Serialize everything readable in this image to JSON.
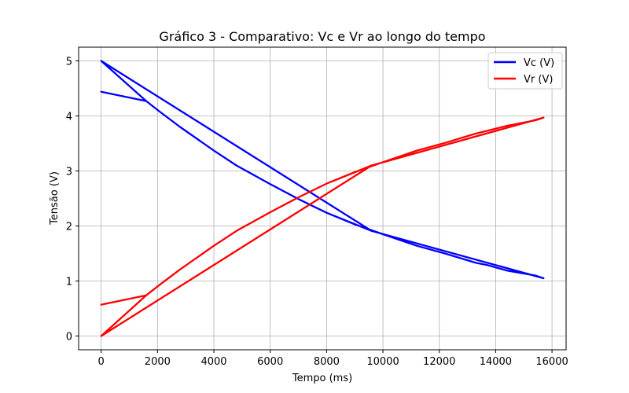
{
  "chart_data": {
    "type": "line",
    "title": "Gráfico 3 - Comparativo: Vc e Vr ao longo do tempo",
    "xlabel": "Tempo (ms)",
    "ylabel": "Tensão (V)",
    "xlim": [
      -800,
      16500
    ],
    "ylim": [
      -0.25,
      5.25
    ],
    "xticks": [
      0,
      2000,
      4000,
      6000,
      8000,
      10000,
      12000,
      14000,
      16000
    ],
    "yticks": [
      0,
      1,
      2,
      3,
      4,
      5
    ],
    "grid": true,
    "legend_position": "top-right",
    "series": [
      {
        "name": "Vc (V)",
        "color": "#0000ff",
        "points": [
          [
            0,
            4.44
          ],
          [
            1600,
            4.27
          ],
          [
            2100,
            4.07
          ],
          [
            2800,
            3.8
          ],
          [
            4000,
            3.37
          ],
          [
            4800,
            3.1
          ],
          [
            6000,
            2.76
          ],
          [
            7000,
            2.49
          ],
          [
            8000,
            2.24
          ],
          [
            9000,
            2.03
          ],
          [
            10000,
            1.85
          ],
          [
            11200,
            1.64
          ],
          [
            12200,
            1.5
          ],
          [
            13300,
            1.33
          ],
          [
            13700,
            1.29
          ],
          [
            14400,
            1.19
          ],
          [
            15400,
            1.1
          ],
          [
            15700,
            1.05
          ],
          [
            9600,
            1.91
          ],
          [
            0,
            5.0
          ],
          [
            1600,
            4.27
          ],
          [
            2100,
            4.07
          ],
          [
            2800,
            3.8
          ],
          [
            4000,
            3.37
          ],
          [
            4800,
            3.1
          ],
          [
            6000,
            2.76
          ],
          [
            7000,
            2.49
          ],
          [
            8000,
            2.24
          ],
          [
            9600,
            1.91
          ]
        ]
      },
      {
        "name": "Vr (V)",
        "color": "#ff0000",
        "points": [
          [
            0,
            0.57
          ],
          [
            1600,
            0.74
          ],
          [
            2100,
            0.94
          ],
          [
            2800,
            1.21
          ],
          [
            4000,
            1.64
          ],
          [
            4800,
            1.91
          ],
          [
            6000,
            2.25
          ],
          [
            7000,
            2.52
          ],
          [
            8000,
            2.77
          ],
          [
            9000,
            2.98
          ],
          [
            10000,
            3.16
          ],
          [
            11200,
            3.37
          ],
          [
            12200,
            3.51
          ],
          [
            13300,
            3.68
          ],
          [
            13700,
            3.73
          ],
          [
            14400,
            3.82
          ],
          [
            15400,
            3.92
          ],
          [
            15700,
            3.97
          ],
          [
            9600,
            3.1
          ],
          [
            0,
            0.0
          ],
          [
            1600,
            0.74
          ],
          [
            2100,
            0.94
          ],
          [
            2800,
            1.21
          ],
          [
            4000,
            1.64
          ],
          [
            4800,
            1.91
          ],
          [
            6000,
            2.25
          ],
          [
            7000,
            2.52
          ],
          [
            8000,
            2.77
          ],
          [
            9600,
            3.1
          ]
        ]
      }
    ]
  }
}
